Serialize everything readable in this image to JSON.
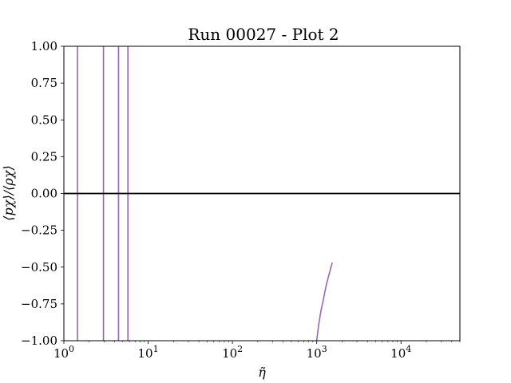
{
  "chart_data": {
    "type": "line",
    "title": "Run 00027 - Plot 2",
    "xlabel": "η̃",
    "ylabel": "⟨pχ⟩/⟨ρχ⟩",
    "xscale": "log",
    "xlim": [
      1,
      50000
    ],
    "ylim": [
      -1.0,
      1.0
    ],
    "x_ticks": [
      {
        "value": 1,
        "base": "10",
        "exp": "0"
      },
      {
        "value": 10,
        "base": "10",
        "exp": "1"
      },
      {
        "value": 100,
        "base": "10",
        "exp": "2"
      },
      {
        "value": 1000,
        "base": "10",
        "exp": "3"
      },
      {
        "value": 10000,
        "base": "10",
        "exp": "4"
      }
    ],
    "y_ticks": [
      "−1.00",
      "−0.75",
      "−0.50",
      "−0.25",
      "0.00",
      "0.25",
      "0.50",
      "0.75",
      "1.00"
    ],
    "y_tick_values": [
      -1.0,
      -0.75,
      -0.5,
      -0.25,
      0.0,
      0.25,
      0.5,
      0.75,
      1.0
    ],
    "reference_line": {
      "y": 0.0,
      "color": "#000000"
    },
    "series": [
      {
        "color": "#9467bd",
        "segments": [
          {
            "x": [
              1.45,
              1.45
            ],
            "y": [
              -1.0,
              1.0
            ]
          },
          {
            "x": [
              2.95,
              2.95
            ],
            "y": [
              -1.0,
              1.0
            ]
          },
          {
            "x": [
              4.45,
              4.45
            ],
            "y": [
              -1.0,
              1.0
            ]
          },
          {
            "x": [
              5.75,
              5.75
            ],
            "y": [
              -1.0,
              1.0
            ]
          },
          {
            "x": [
              1000,
              1050,
              1120,
              1200,
              1300,
              1400,
              1530
            ],
            "y": [
              -1.0,
              -0.9,
              -0.8,
              -0.72,
              -0.62,
              -0.55,
              -0.47
            ]
          }
        ]
      }
    ]
  }
}
